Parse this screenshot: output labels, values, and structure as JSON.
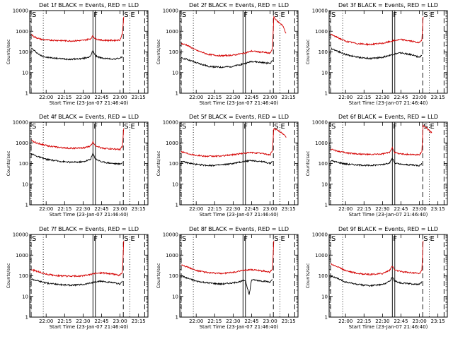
{
  "figure": {
    "description_colors": {
      "events": "#000000",
      "lld": "#d40000"
    }
  },
  "chart_data": [
    {
      "type": "line",
      "title": "Det 1f BLACK = Events, RED = LLD",
      "xlabel": "Start Time (23-Jan-07 21:46:40)",
      "ylabel": "Counts/sec",
      "x_ticks": [
        "22:00",
        "22:15",
        "22:30",
        "22:45",
        "23:00",
        "23:15"
      ],
      "y_ticks": [
        "1",
        "10",
        "100",
        "1000",
        "10000"
      ],
      "yscale": "log",
      "ylim": [
        1,
        10000
      ],
      "markers": [
        "S",
        "F",
        "S",
        "E"
      ],
      "series": [
        {
          "name": "Events",
          "color": "#000000",
          "x": [
            "21:48",
            "21:50",
            "21:55",
            "22:00",
            "22:10",
            "22:20",
            "22:30",
            "22:36",
            "22:38",
            "22:40",
            "22:45",
            "22:55",
            "23:00",
            "23:02"
          ],
          "values": [
            150,
            120,
            70,
            55,
            48,
            44,
            48,
            60,
            120,
            65,
            50,
            45,
            50,
            60
          ]
        },
        {
          "name": "LLD",
          "color": "#d40000",
          "x": [
            "21:48",
            "21:50",
            "21:55",
            "22:00",
            "22:10",
            "22:20",
            "22:30",
            "22:36",
            "22:38",
            "22:40",
            "22:45",
            "22:55",
            "23:00",
            "23:02",
            "23:03"
          ],
          "values": [
            700,
            550,
            420,
            380,
            360,
            340,
            360,
            430,
            600,
            430,
            370,
            360,
            380,
            800,
            5000
          ]
        }
      ]
    },
    {
      "type": "line",
      "title": "Det 2f BLACK = Events, RED = LLD",
      "xlabel": "Start Time (23-Jan-07 21:46:40)",
      "ylabel": "Counts/sec",
      "x_ticks": [
        "22:00",
        "22:15",
        "22:30",
        "22:45",
        "23:00",
        "23:15"
      ],
      "y_ticks": [
        "1",
        "10",
        "100",
        "1000",
        "10000"
      ],
      "yscale": "log",
      "ylim": [
        1,
        10000
      ],
      "markers": [
        "S",
        "F",
        "S",
        "E"
      ],
      "series": [
        {
          "name": "Events",
          "color": "#000000",
          "x": [
            "21:48",
            "21:52",
            "22:00",
            "22:10",
            "22:20",
            "22:30",
            "22:40",
            "22:45",
            "22:55",
            "23:00",
            "23:02"
          ],
          "values": [
            50,
            45,
            30,
            20,
            18,
            20,
            28,
            35,
            30,
            28,
            40
          ]
        },
        {
          "name": "LLD",
          "color": "#d40000",
          "x": [
            "21:48",
            "21:52",
            "22:00",
            "22:10",
            "22:20",
            "22:30",
            "22:40",
            "22:45",
            "22:55",
            "23:00",
            "23:02",
            "23:03",
            "23:06",
            "23:10",
            "23:13"
          ],
          "values": [
            250,
            220,
            120,
            75,
            65,
            70,
            90,
            110,
            95,
            85,
            150,
            5000,
            3000,
            2000,
            800
          ]
        }
      ]
    },
    {
      "type": "line",
      "title": "Det 3f BLACK = Events, RED = LLD",
      "xlabel": "Start Time (23-Jan-07 21:46:40)",
      "ylabel": "Counts/sec",
      "x_ticks": [
        "22:00",
        "22:15",
        "22:30",
        "22:45",
        "23:00",
        "23:15"
      ],
      "y_ticks": [
        "1",
        "10",
        "100",
        "1000",
        "10000"
      ],
      "yscale": "log",
      "ylim": [
        1,
        10000
      ],
      "markers": [
        "S",
        "F",
        "S",
        "E"
      ],
      "series": [
        {
          "name": "Events",
          "color": "#000000",
          "x": [
            "21:48",
            "21:52",
            "22:00",
            "22:10",
            "22:20",
            "22:30",
            "22:40",
            "22:45",
            "22:55",
            "23:00",
            "23:02"
          ],
          "values": [
            150,
            120,
            75,
            55,
            48,
            55,
            80,
            90,
            70,
            55,
            70
          ]
        },
        {
          "name": "LLD",
          "color": "#d40000",
          "x": [
            "21:48",
            "21:52",
            "22:00",
            "22:10",
            "22:20",
            "22:30",
            "22:40",
            "22:45",
            "22:55",
            "23:00",
            "23:02",
            "23:03"
          ],
          "values": [
            700,
            550,
            330,
            250,
            230,
            260,
            360,
            400,
            320,
            270,
            400,
            5000
          ]
        }
      ]
    },
    {
      "type": "line",
      "title": "Det 4f BLACK = Events, RED = LLD",
      "xlabel": "Start Time (23-Jan-07 21:46:40)",
      "ylabel": "Counts/sec",
      "x_ticks": [
        "22:00",
        "22:15",
        "22:30",
        "22:45",
        "23:00",
        "23:15"
      ],
      "y_ticks": [
        "1",
        "10",
        "100",
        "1000",
        "10000"
      ],
      "yscale": "log",
      "ylim": [
        1,
        10000
      ],
      "markers": [
        "S",
        "F",
        "S",
        "E"
      ],
      "series": [
        {
          "name": "Events",
          "color": "#000000",
          "x": [
            "21:48",
            "21:52",
            "22:00",
            "22:10",
            "22:20",
            "22:30",
            "22:36",
            "22:38",
            "22:40",
            "22:45",
            "22:55",
            "23:00",
            "23:02"
          ],
          "values": [
            300,
            230,
            160,
            130,
            115,
            120,
            160,
            300,
            170,
            120,
            100,
            95,
            110
          ]
        },
        {
          "name": "LLD",
          "color": "#d40000",
          "x": [
            "21:48",
            "21:52",
            "22:00",
            "22:10",
            "22:20",
            "22:30",
            "22:36",
            "22:38",
            "22:40",
            "22:45",
            "22:55",
            "23:00",
            "23:02",
            "23:03"
          ],
          "values": [
            1300,
            1000,
            750,
            600,
            550,
            560,
            700,
            1100,
            750,
            560,
            500,
            480,
            700,
            5000
          ]
        }
      ]
    },
    {
      "type": "line",
      "title": "Det 5f BLACK = Events, RED = LLD",
      "xlabel": "Start Time (23-Jan-07 21:46:40)",
      "ylabel": "Counts/sec",
      "x_ticks": [
        "22:00",
        "22:15",
        "22:30",
        "22:45",
        "23:00",
        "23:15"
      ],
      "y_ticks": [
        "1",
        "10",
        "100",
        "1000",
        "10000"
      ],
      "yscale": "log",
      "ylim": [
        1,
        10000
      ],
      "markers": [
        "S",
        "F",
        "S",
        "E"
      ],
      "series": [
        {
          "name": "Events",
          "color": "#000000",
          "x": [
            "21:48",
            "21:52",
            "22:00",
            "22:10",
            "22:20",
            "22:30",
            "22:40",
            "22:45",
            "22:55",
            "23:00",
            "23:02"
          ],
          "values": [
            130,
            110,
            90,
            80,
            85,
            100,
            130,
            140,
            120,
            100,
            130
          ]
        },
        {
          "name": "LLD",
          "color": "#d40000",
          "x": [
            "21:48",
            "21:52",
            "22:00",
            "22:10",
            "22:20",
            "22:30",
            "22:40",
            "22:45",
            "22:55",
            "23:00",
            "23:02",
            "23:03",
            "23:06",
            "23:10",
            "23:13"
          ],
          "values": [
            380,
            320,
            250,
            220,
            230,
            270,
            320,
            340,
            300,
            260,
            450,
            5000,
            4000,
            3000,
            1800
          ]
        }
      ]
    },
    {
      "type": "line",
      "title": "Det 6f BLACK = Events, RED = LLD",
      "xlabel": "Start Time (23-Jan-07 21:46:40)",
      "ylabel": "Counts/sec",
      "x_ticks": [
        "22:00",
        "22:15",
        "22:30",
        "22:45",
        "23:00",
        "23:15"
      ],
      "y_ticks": [
        "1",
        "10",
        "100",
        "1000",
        "10000"
      ],
      "yscale": "log",
      "ylim": [
        1,
        10000
      ],
      "markers": [
        "S",
        "F",
        "S",
        "E"
      ],
      "series": [
        {
          "name": "Events",
          "color": "#000000",
          "x": [
            "21:48",
            "21:52",
            "22:00",
            "22:10",
            "22:20",
            "22:30",
            "22:36",
            "22:38",
            "22:40",
            "22:45",
            "22:55",
            "23:00",
            "23:02"
          ],
          "values": [
            140,
            120,
            95,
            85,
            80,
            90,
            110,
            180,
            105,
            90,
            85,
            80,
            100
          ]
        },
        {
          "name": "LLD",
          "color": "#d40000",
          "x": [
            "21:48",
            "21:52",
            "22:00",
            "22:10",
            "22:20",
            "22:30",
            "22:36",
            "22:38",
            "22:40",
            "22:45",
            "22:55",
            "23:00",
            "23:02",
            "23:03",
            "23:06",
            "23:10"
          ],
          "values": [
            500,
            420,
            330,
            290,
            270,
            290,
            350,
            600,
            340,
            290,
            270,
            260,
            400,
            7000,
            5000,
            3000
          ]
        }
      ]
    },
    {
      "type": "line",
      "title": "Det 7f BLACK = Events, RED = LLD",
      "xlabel": "Start Time (23-Jan-07 21:46:40)",
      "ylabel": "Counts/sec",
      "x_ticks": [
        "22:00",
        "22:15",
        "22:30",
        "22:45",
        "23:00",
        "23:15"
      ],
      "y_ticks": [
        "1",
        "10",
        "100",
        "1000",
        "10000"
      ],
      "yscale": "log",
      "ylim": [
        1,
        10000
      ],
      "markers": [
        "S",
        "F",
        "S",
        "E"
      ],
      "series": [
        {
          "name": "Events",
          "color": "#000000",
          "x": [
            "21:48",
            "21:52",
            "22:00",
            "22:10",
            "22:20",
            "22:30",
            "22:40",
            "22:45",
            "22:55",
            "23:00",
            "23:02"
          ],
          "values": [
            70,
            60,
            45,
            38,
            35,
            38,
            50,
            55,
            45,
            40,
            55
          ]
        },
        {
          "name": "LLD",
          "color": "#d40000",
          "x": [
            "21:48",
            "21:52",
            "22:00",
            "22:10",
            "22:20",
            "22:30",
            "22:40",
            "22:45",
            "22:55",
            "23:00",
            "23:02",
            "23:03"
          ],
          "values": [
            200,
            170,
            120,
            100,
            95,
            100,
            130,
            140,
            120,
            105,
            160,
            5000
          ]
        }
      ]
    },
    {
      "type": "line",
      "title": "Det 8f BLACK = Events, RED = LLD",
      "xlabel": "Start Time (23-Jan-07 21:46:40)",
      "ylabel": "Counts/sec",
      "x_ticks": [
        "22:00",
        "22:15",
        "22:30",
        "22:45",
        "23:00",
        "23:15"
      ],
      "y_ticks": [
        "1",
        "10",
        "100",
        "1000",
        "10000"
      ],
      "yscale": "log",
      "ylim": [
        1,
        10000
      ],
      "markers": [
        "S",
        "F",
        "S",
        "E"
      ],
      "series": [
        {
          "name": "Events",
          "color": "#000000",
          "x": [
            "21:48",
            "21:52",
            "22:00",
            "22:10",
            "22:20",
            "22:30",
            "22:40",
            "22:43",
            "22:45",
            "22:55",
            "23:00",
            "23:02"
          ],
          "values": [
            100,
            80,
            55,
            45,
            40,
            45,
            60,
            12,
            65,
            55,
            50,
            65
          ]
        },
        {
          "name": "LLD",
          "color": "#d40000",
          "x": [
            "21:48",
            "21:52",
            "22:00",
            "22:10",
            "22:20",
            "22:30",
            "22:40",
            "22:45",
            "22:55",
            "23:00",
            "23:02",
            "23:03"
          ],
          "values": [
            350,
            280,
            180,
            140,
            130,
            145,
            190,
            200,
            170,
            150,
            220,
            5000
          ]
        }
      ]
    },
    {
      "type": "line",
      "title": "Det 9f BLACK = Events, RED = LLD",
      "xlabel": "Start Time (23-Jan-07 21:46:40)",
      "ylabel": "Counts/sec",
      "x_ticks": [
        "22:00",
        "22:15",
        "22:30",
        "22:45",
        "23:00",
        "23:15"
      ],
      "y_ticks": [
        "1",
        "10",
        "100",
        "1000",
        "10000"
      ],
      "yscale": "log",
      "ylim": [
        1,
        10000
      ],
      "markers": [
        "S",
        "F",
        "S",
        "E"
      ],
      "series": [
        {
          "name": "Events",
          "color": "#000000",
          "x": [
            "21:48",
            "21:52",
            "22:00",
            "22:10",
            "22:20",
            "22:30",
            "22:36",
            "22:38",
            "22:40",
            "22:45",
            "22:55",
            "23:00",
            "23:02"
          ],
          "values": [
            100,
            80,
            50,
            38,
            33,
            38,
            55,
            90,
            55,
            45,
            40,
            38,
            50
          ]
        },
        {
          "name": "LLD",
          "color": "#d40000",
          "x": [
            "21:48",
            "21:52",
            "22:00",
            "22:10",
            "22:20",
            "22:30",
            "22:36",
            "22:38",
            "22:40",
            "22:45",
            "22:55",
            "23:00",
            "23:02",
            "23:03"
          ],
          "values": [
            380,
            300,
            180,
            130,
            115,
            130,
            190,
            300,
            190,
            160,
            140,
            130,
            180,
            5000
          ]
        }
      ]
    }
  ]
}
